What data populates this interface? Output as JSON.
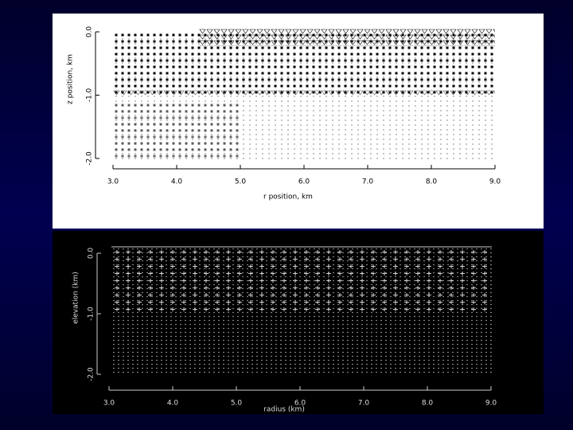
{
  "chart_data": [
    {
      "type": "scatter",
      "xlabel": "r position, km",
      "ylabel": "z position, km",
      "xlim": [
        3.0,
        9.0
      ],
      "ylim": [
        -2.0,
        0.0
      ],
      "xticks": [
        {
          "value": 3,
          "label": "3.0"
        },
        {
          "value": 4,
          "label": "4.0"
        },
        {
          "value": 5,
          "label": "5.0"
        },
        {
          "value": 6,
          "label": "6.0"
        },
        {
          "value": 7,
          "label": "7.0"
        },
        {
          "value": 8,
          "label": "8.0"
        },
        {
          "value": 9,
          "label": "9.0"
        }
      ],
      "yticks": [
        {
          "value": 0,
          "label": "0.0"
        },
        {
          "value": -1,
          "label": "-1.0"
        },
        {
          "value": -2,
          "label": "-2.0"
        }
      ]
    },
    {
      "type": "scatter",
      "xlabel": "radius (km)",
      "ylabel": "elevation (km)",
      "xlim": [
        3.0,
        9.0
      ],
      "ylim": [
        -2.0,
        0.0
      ],
      "xticks": [
        {
          "value": 3,
          "label": "3.0"
        },
        {
          "value": 4,
          "label": "4.0"
        },
        {
          "value": 5,
          "label": "5.0"
        },
        {
          "value": 6,
          "label": "6.0"
        },
        {
          "value": 7,
          "label": "7.0"
        },
        {
          "value": 8,
          "label": "8.0"
        },
        {
          "value": 9,
          "label": "9.0"
        }
      ],
      "yticks": [
        {
          "value": 0,
          "label": "0.0"
        },
        {
          "value": -1,
          "label": "-1.0"
        },
        {
          "value": -2,
          "label": "-2.0"
        }
      ]
    }
  ]
}
